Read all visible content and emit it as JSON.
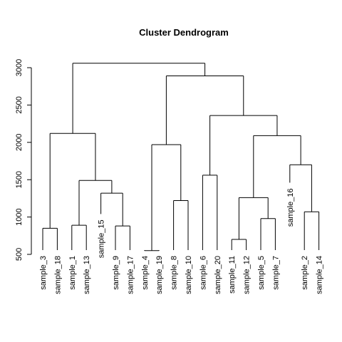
{
  "chart_data": {
    "type": "dendrogram",
    "title": "Cluster Dendrogram",
    "y_ticks": [
      500,
      1000,
      1500,
      2000,
      2500,
      3000
    ],
    "leaves": [
      "sample_3",
      "sample_18",
      "sample_1",
      "sample_13",
      "sample_15",
      "sample_9",
      "sample_17",
      "sample_4",
      "sample_19",
      "sample_8",
      "sample_10",
      "sample_6",
      "sample_20",
      "sample_11",
      "sample_12",
      "sample_5",
      "sample_7",
      "sample_16",
      "sample_2",
      "sample_14"
    ],
    "merges": [
      {
        "left": "sample_3",
        "right": "sample_18",
        "height": 850
      },
      {
        "left": "sample_1",
        "right": "sample_13",
        "height": 890
      },
      {
        "left": "sample_9",
        "right": "sample_17",
        "height": 880
      },
      {
        "left": "sample_15",
        "right": "{sample_9, sample_17}",
        "height": 1320
      },
      {
        "left": "{sample_1, sample_13}",
        "right": "{sample_15, sample_9, sample_17}",
        "height": 1490
      },
      {
        "left": "{sample_3, sample_18}",
        "right": "{sample_1 ... sample_17}",
        "height": 2120
      },
      {
        "left": "sample_4",
        "right": "sample_19",
        "height": 550
      },
      {
        "left": "sample_8",
        "right": "sample_10",
        "height": 1220
      },
      {
        "left": "{sample_4, sample_19}",
        "right": "{sample_8, sample_10}",
        "height": 1970
      },
      {
        "left": "sample_6",
        "right": "sample_20",
        "height": 1560
      },
      {
        "left": "sample_11",
        "right": "sample_12",
        "height": 700
      },
      {
        "left": "sample_5",
        "right": "sample_7",
        "height": 980
      },
      {
        "left": "{sample_11, sample_12}",
        "right": "{sample_5, sample_7}",
        "height": 1260
      },
      {
        "left": "sample_2",
        "right": "sample_14",
        "height": 1070
      },
      {
        "left": "sample_16",
        "right": "{sample_2, sample_14}",
        "height": 1700
      },
      {
        "left": "{sample_11, sample_12, sample_5, sample_7}",
        "right": "{sample_16, sample_2, sample_14}",
        "height": 2090
      },
      {
        "left": "{sample_6, sample_20}",
        "right": "{sample_11 ... sample_14}",
        "height": 2360
      },
      {
        "left": "{sample_4, sample_19, sample_8, sample_10}",
        "right": "{sample_6 ... sample_14}",
        "height": 2890
      },
      {
        "left": "{sample_3 ... sample_17}",
        "right": "{sample_4 ... sample_14}",
        "height": 3060
      }
    ],
    "tree": {
      "h": 3060,
      "c": [
        {
          "h": 2120,
          "c": [
            {
              "h": 850,
              "c": [
                "sample_3",
                "sample_18"
              ]
            },
            {
              "h": 1490,
              "c": [
                {
                  "h": 890,
                  "c": [
                    "sample_1",
                    "sample_13"
                  ]
                },
                {
                  "h": 1320,
                  "c": [
                    "sample_15",
                    {
                      "h": 880,
                      "c": [
                        "sample_9",
                        "sample_17"
                      ]
                    }
                  ]
                }
              ]
            }
          ]
        },
        {
          "h": 2890,
          "c": [
            {
              "h": 1970,
              "c": [
                {
                  "h": 550,
                  "c": [
                    "sample_4",
                    "sample_19"
                  ]
                },
                {
                  "h": 1220,
                  "c": [
                    "sample_8",
                    "sample_10"
                  ]
                }
              ]
            },
            {
              "h": 2360,
              "c": [
                {
                  "h": 1560,
                  "c": [
                    "sample_6",
                    "sample_20"
                  ]
                },
                {
                  "h": 2090,
                  "c": [
                    {
                      "h": 1260,
                      "c": [
                        {
                          "h": 700,
                          "c": [
                            "sample_11",
                            "sample_12"
                          ]
                        },
                        {
                          "h": 980,
                          "c": [
                            "sample_5",
                            "sample_7"
                          ]
                        }
                      ]
                    },
                    {
                      "h": 1700,
                      "c": [
                        "sample_16",
                        {
                          "h": 1070,
                          "c": [
                            "sample_2",
                            "sample_14"
                          ]
                        }
                      ]
                    }
                  ]
                }
              ]
            }
          ]
        }
      ]
    },
    "leaf_heights": {
      "sample_15": 1040,
      "sample_16": 1460
    }
  }
}
